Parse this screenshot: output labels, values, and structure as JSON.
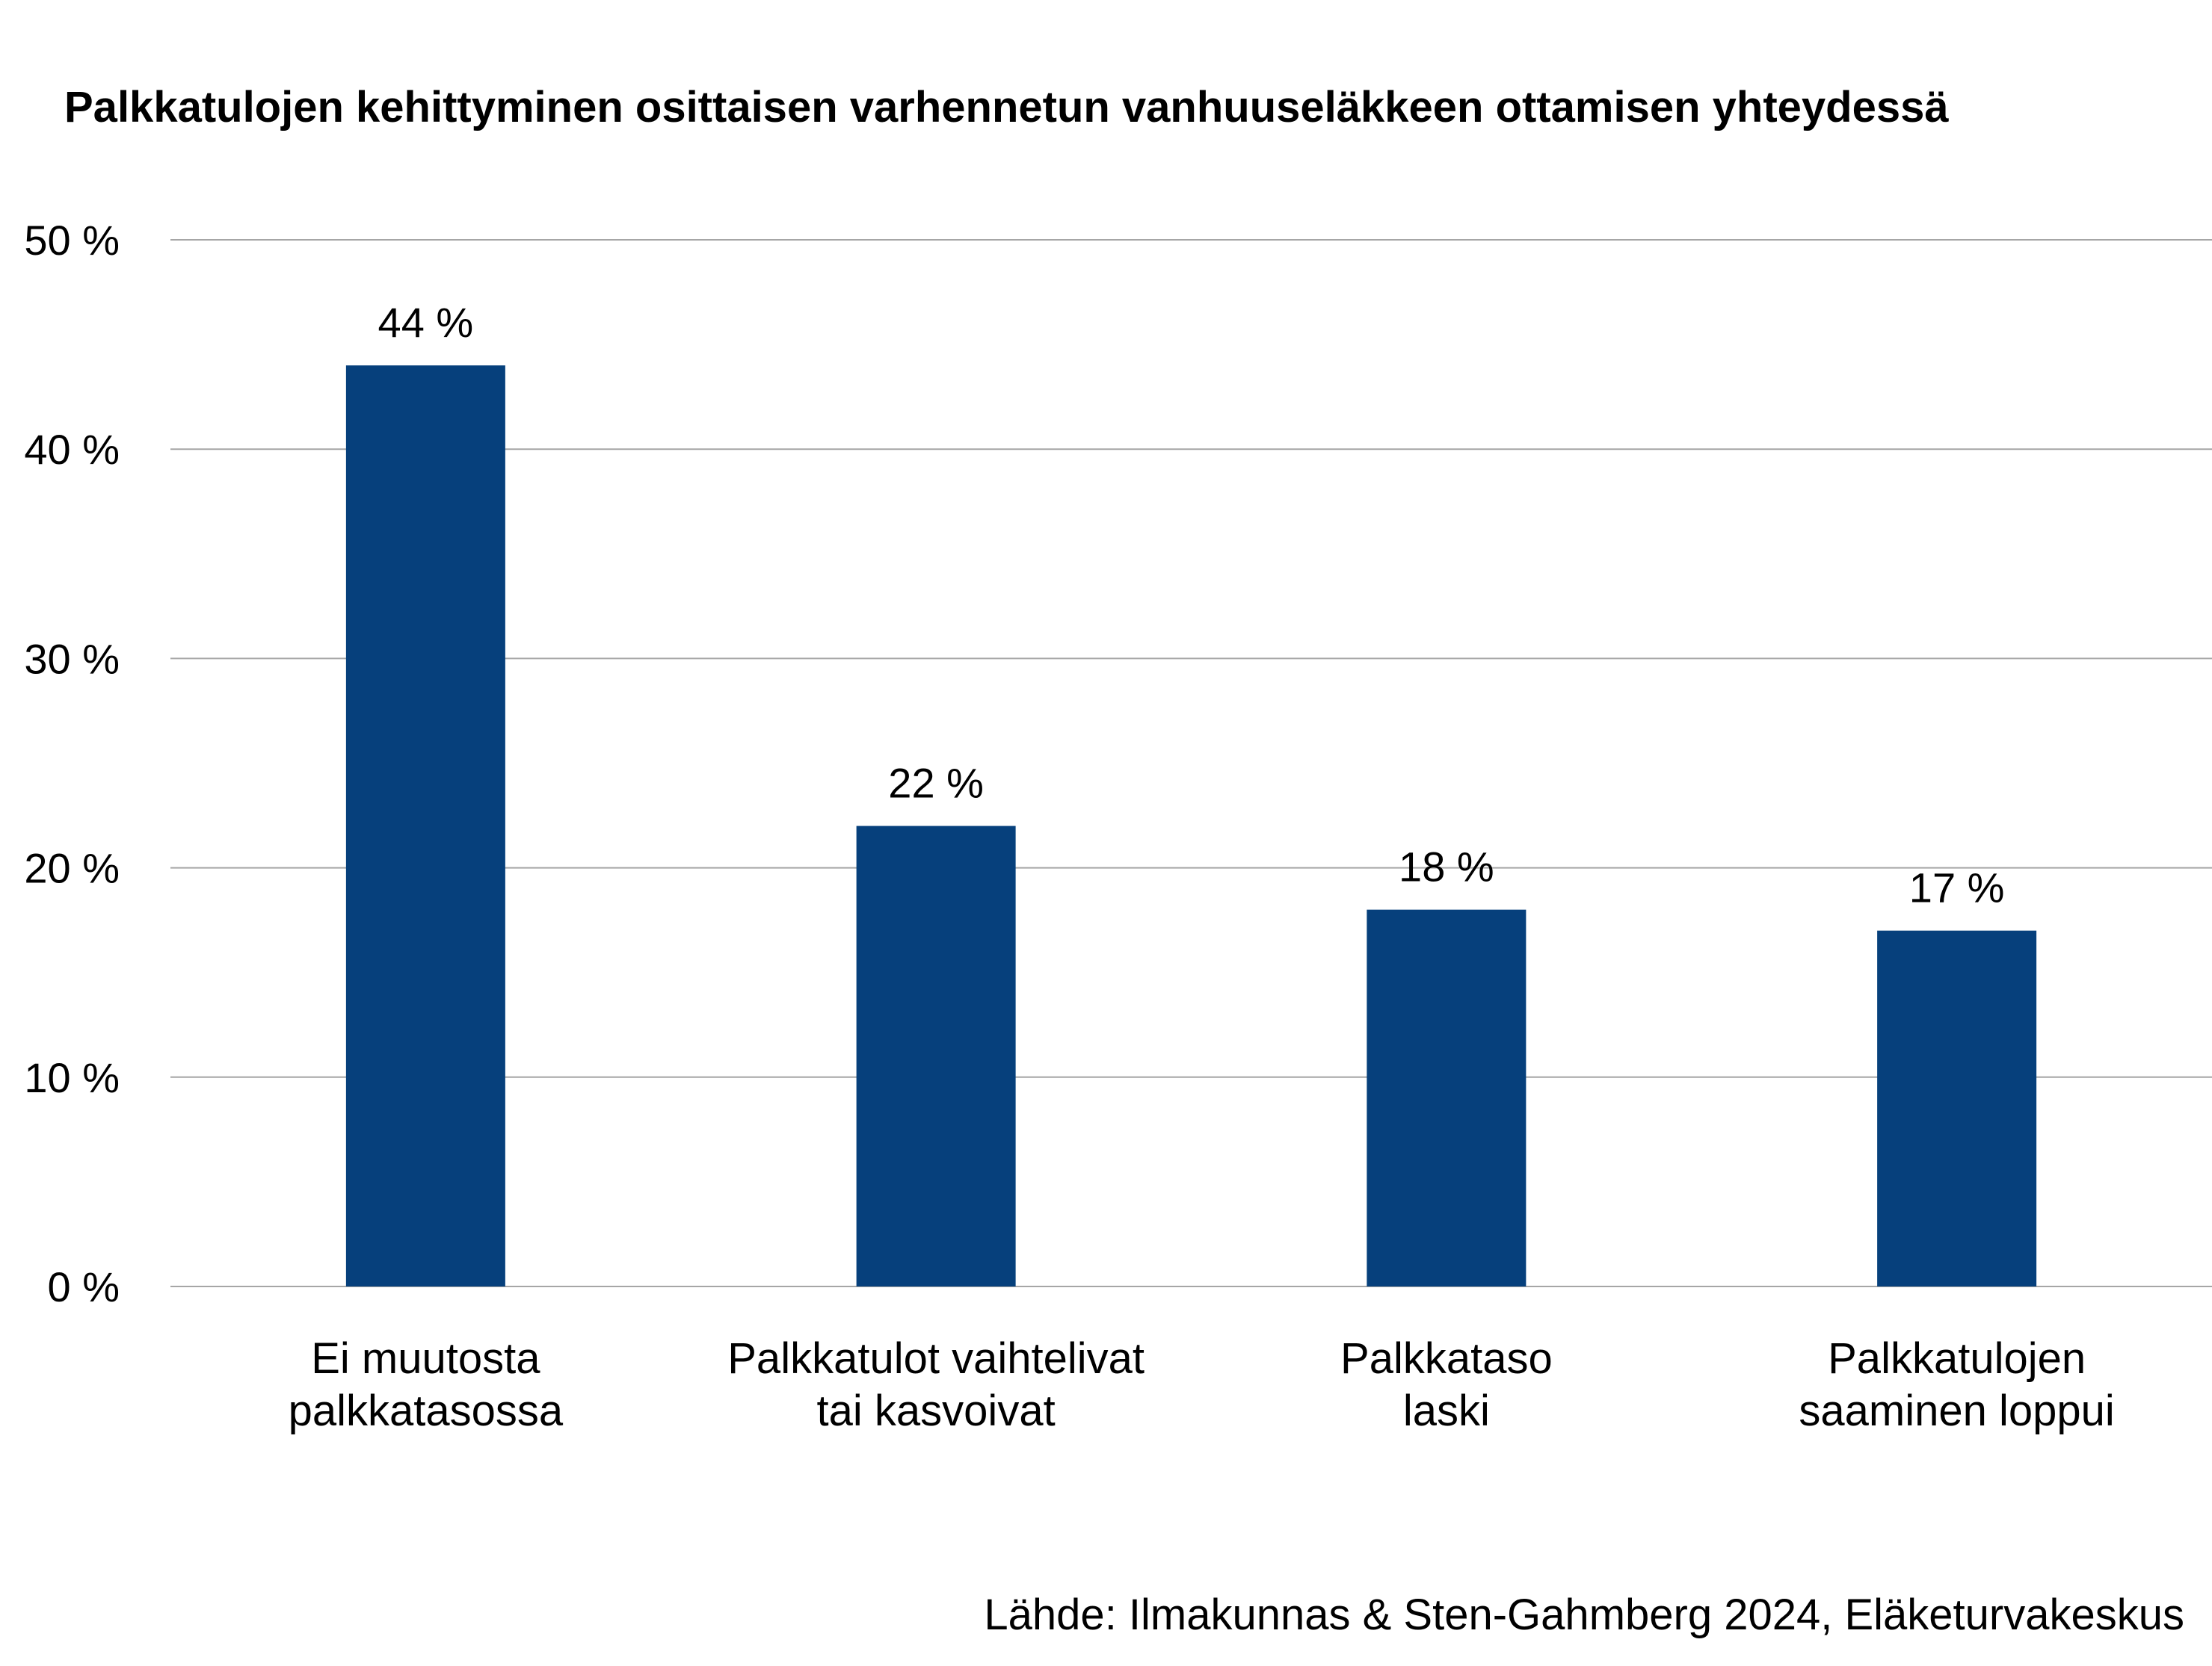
{
  "chart_data": {
    "type": "bar",
    "title": "Palkkatulojen kehittyminen osittaisen varhennetun vanhuuseläkkeen ottamisen yhteydessä",
    "categories": [
      [
        "Ei muutosta",
        "palkkatasossa"
      ],
      [
        "Palkkatulot vaihtelivat",
        "tai kasvoivat"
      ],
      [
        "Palkkataso",
        "laski"
      ],
      [
        "Palkkatulojen",
        "saaminen loppui"
      ]
    ],
    "values": [
      44,
      22,
      18,
      17
    ],
    "value_labels": [
      "44 %",
      "22 %",
      "18 %",
      "17 %"
    ],
    "ylim": [
      0,
      50
    ],
    "yticks": [
      0,
      10,
      20,
      30,
      40,
      50
    ],
    "ytick_labels": [
      "0 %",
      "10 %",
      "20 %",
      "30 %",
      "40 %",
      "50 %"
    ],
    "xlabel": "",
    "ylabel": "",
    "grid": true,
    "legend": "none",
    "bar_color": "#06407C",
    "grid_color": "#A6A6A6",
    "source": "Lähde: Ilmakunnas & Sten-Gahmberg 2024, Eläketurvakeskus"
  }
}
